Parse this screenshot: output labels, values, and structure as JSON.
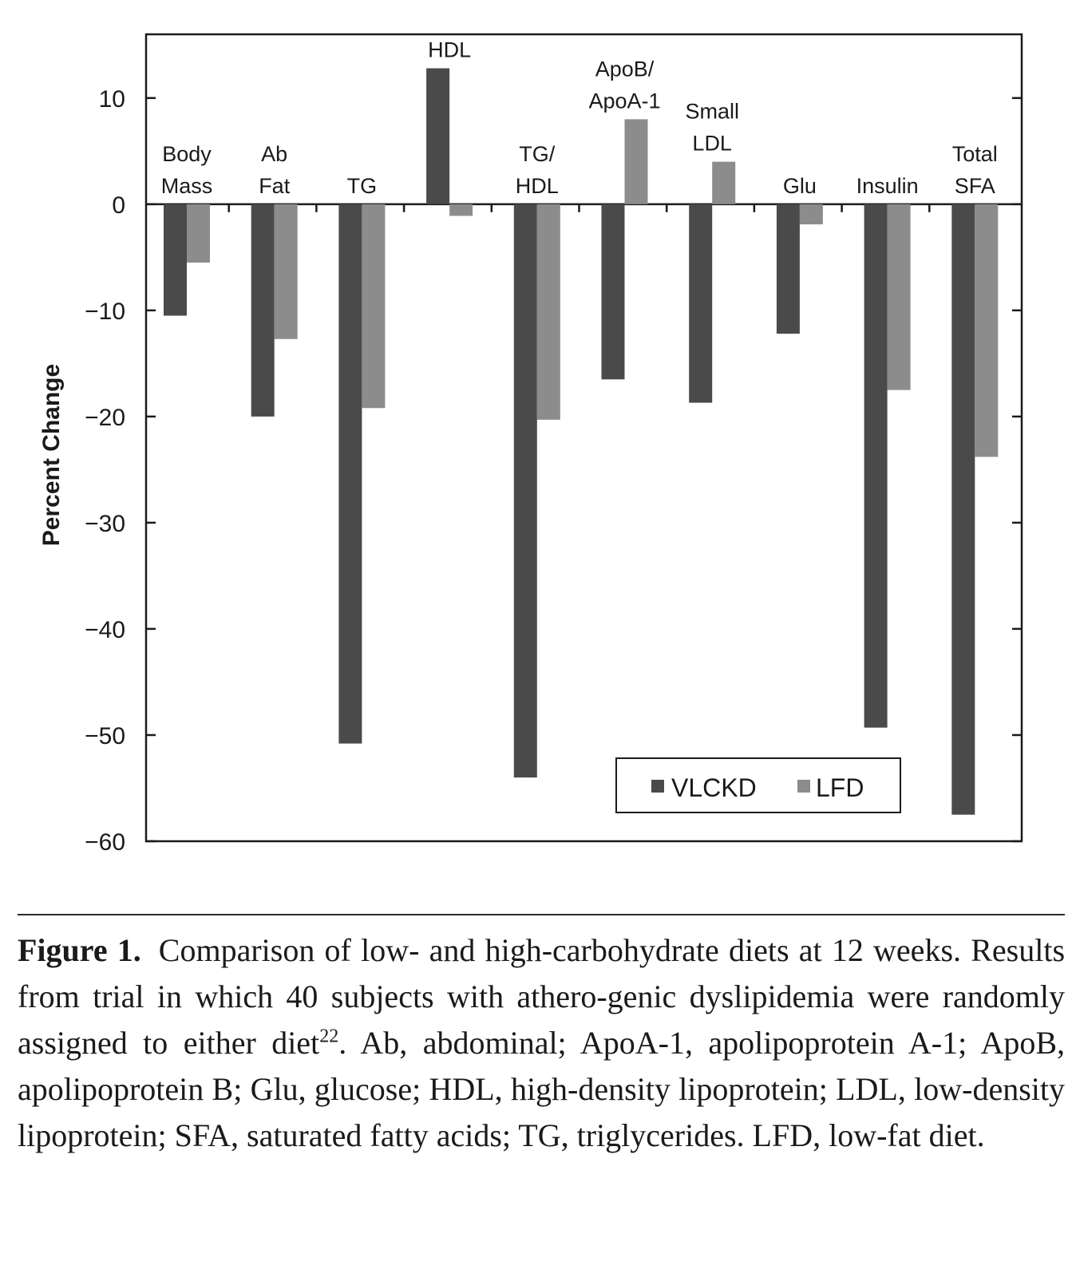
{
  "chart_data": {
    "type": "bar",
    "categories": [
      [
        "Body",
        "Mass"
      ],
      [
        "Ab",
        "Fat"
      ],
      [
        "TG"
      ],
      [
        "HDL"
      ],
      [
        "TG/",
        "HDL"
      ],
      [
        "ApoB/",
        "ApoA-1"
      ],
      [
        "Small",
        "LDL"
      ],
      [
        "Glu"
      ],
      [
        "Insulin"
      ],
      [
        "Total",
        "SFA"
      ]
    ],
    "series": [
      {
        "name": "VLCKD",
        "color": "#4a4a4a",
        "values": [
          -10.5,
          -20,
          -50.8,
          12.8,
          -54,
          -16.5,
          -18.7,
          -12.2,
          -49.3,
          -57.5
        ]
      },
      {
        "name": "LFD",
        "color": "#8c8c8c",
        "values": [
          -5.5,
          -12.7,
          -19.2,
          -1.1,
          -20.3,
          8,
          4,
          -1.9,
          -17.5,
          -23.8
        ]
      }
    ],
    "ylabel": "Percent Change",
    "ylim": [
      -60,
      16
    ],
    "yticks": [
      10,
      0,
      -10,
      -20,
      -30,
      -40,
      -50,
      -60
    ],
    "grid": false,
    "legend": "bottom-right"
  },
  "caption": {
    "label": "Figure 1.",
    "text_before_sup": "Comparison of low- and high-carbohydrate diets at 12 weeks. Results from trial in which 40 subjects with athero-genic dyslipidemia were randomly assigned to either diet",
    "sup": "22",
    "text_after_sup": ". Ab, abdominal; ApoA-1, apolipoprotein A-1; ApoB, apolipoprotein B; Glu, glucose; HDL, high-density lipoprotein; LDL, low-density lipoprotein; SFA, saturated fatty acids; TG, triglycerides. LFD, low-fat diet."
  }
}
